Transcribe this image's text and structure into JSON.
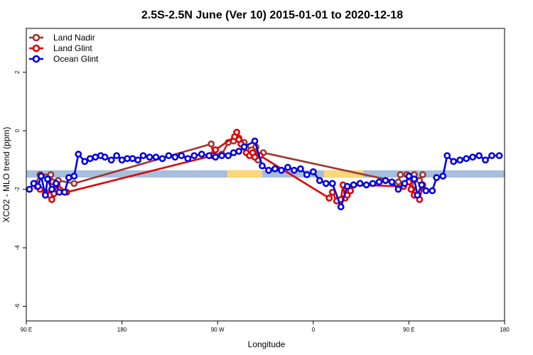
{
  "chart_data": {
    "type": "line",
    "title": "2.5S-2.5N June (Ver 10)   2015-01-01 to 2020-12-18",
    "xlabel": "Longitude",
    "ylabel": "XCO2 - MLO trend (ppm)",
    "xlim": [
      90,
      540
    ],
    "ylim": [
      -6.5,
      3.5
    ],
    "x_ticks": [
      {
        "value": 90,
        "label": "90 E"
      },
      {
        "value": 180,
        "label": "180"
      },
      {
        "value": 270,
        "label": "90 W"
      },
      {
        "value": 360,
        "label": "0"
      },
      {
        "value": 450,
        "label": "90 E"
      },
      {
        "value": 540,
        "label": "180"
      }
    ],
    "y_ticks": [
      {
        "value": 2,
        "label": "2"
      },
      {
        "value": 0,
        "label": "0"
      },
      {
        "value": -2,
        "label": "-2"
      },
      {
        "value": -4,
        "label": "-4"
      },
      {
        "value": -6,
        "label": "-6"
      }
    ],
    "grid": false,
    "legend_position": "top-left",
    "bands": [
      {
        "x": [
          90,
          540
        ],
        "y": [
          -1.6,
          -1.35
        ],
        "color": "#a7bedc"
      },
      {
        "x": [
          279,
          312
        ],
        "y": [
          -1.6,
          -1.35
        ],
        "color": "#fcd67a"
      },
      {
        "x": [
          370,
          407
        ],
        "y": [
          -1.6,
          -1.35
        ],
        "color": "#fcd67a"
      }
    ],
    "series": [
      {
        "name": "Land Nadir",
        "color": "#a0352f",
        "points": [
          [
            99,
            -1.8
          ],
          [
            103,
            -1.5
          ],
          [
            113,
            -1.5
          ],
          [
            115,
            -1.75
          ],
          [
            120,
            -1.7
          ],
          [
            135,
            -1.8
          ],
          [
            264,
            -0.45
          ],
          [
            266,
            -0.8
          ],
          [
            274,
            -0.8
          ],
          [
            280,
            -0.4
          ],
          [
            285,
            -0.35
          ],
          [
            290,
            -0.25
          ],
          [
            295,
            -0.4
          ],
          [
            297,
            -0.6
          ],
          [
            306,
            -0.55
          ],
          [
            308,
            -1.0
          ],
          [
            313,
            -0.75
          ],
          [
            440,
            -1.75
          ],
          [
            442,
            -1.5
          ],
          [
            448,
            -1.5
          ],
          [
            453,
            -2.0
          ],
          [
            455,
            -1.5
          ],
          [
            460,
            -1.7
          ],
          [
            463,
            -1.5
          ]
        ]
      },
      {
        "name": "Land Glint",
        "color": "#e00000",
        "points": [
          [
            100,
            -1.9
          ],
          [
            103,
            -2.0
          ],
          [
            108,
            -2.1
          ],
          [
            112,
            -2.2
          ],
          [
            114,
            -2.35
          ],
          [
            116,
            -2.15
          ],
          [
            119,
            -1.85
          ],
          [
            128,
            -2.1
          ],
          [
            265,
            -0.85
          ],
          [
            268,
            -0.65
          ],
          [
            286,
            -0.2
          ],
          [
            288,
            -0.05
          ],
          [
            290,
            -0.3
          ],
          [
            292,
            -0.45
          ],
          [
            297,
            -0.75
          ],
          [
            300,
            -0.85
          ],
          [
            303,
            -0.75
          ],
          [
            305,
            -0.9
          ],
          [
            310,
            -0.85
          ],
          [
            375,
            -2.3
          ],
          [
            378,
            -2.1
          ],
          [
            382,
            -2.4
          ],
          [
            386,
            -2.35
          ],
          [
            388,
            -1.85
          ],
          [
            390,
            -2.3
          ],
          [
            392,
            -2.2
          ],
          [
            395,
            -2.05
          ],
          [
            398,
            -1.85
          ],
          [
            445,
            -1.9
          ],
          [
            450,
            -1.75
          ],
          [
            452,
            -2.0
          ],
          [
            455,
            -2.2
          ],
          [
            460,
            -2.35
          ],
          [
            463,
            -1.85
          ]
        ]
      },
      {
        "name": "Ocean Glint",
        "color": "#0000e0",
        "points": [
          [
            93,
            -2.0
          ],
          [
            97,
            -1.8
          ],
          [
            101,
            -1.9
          ],
          [
            104,
            -1.55
          ],
          [
            108,
            -2.2
          ],
          [
            110,
            -1.65
          ],
          [
            114,
            -2.0
          ],
          [
            118,
            -1.8
          ],
          [
            121,
            -2.1
          ],
          [
            126,
            -2.1
          ],
          [
            130,
            -1.6
          ],
          [
            135,
            -1.55
          ],
          [
            139,
            -0.8
          ],
          [
            145,
            -1.05
          ],
          [
            150,
            -0.95
          ],
          [
            155,
            -0.9
          ],
          [
            160,
            -0.85
          ],
          [
            164,
            -0.9
          ],
          [
            170,
            -1.0
          ],
          [
            175,
            -0.85
          ],
          [
            180,
            -1.0
          ],
          [
            185,
            -0.95
          ],
          [
            190,
            -0.95
          ],
          [
            195,
            -1.0
          ],
          [
            200,
            -0.85
          ],
          [
            206,
            -0.9
          ],
          [
            212,
            -0.9
          ],
          [
            218,
            -0.95
          ],
          [
            224,
            -0.85
          ],
          [
            230,
            -0.9
          ],
          [
            236,
            -0.85
          ],
          [
            242,
            -0.95
          ],
          [
            248,
            -0.85
          ],
          [
            255,
            -0.8
          ],
          [
            262,
            -0.85
          ],
          [
            268,
            -0.9
          ],
          [
            274,
            -0.85
          ],
          [
            280,
            -0.85
          ],
          [
            285,
            -0.75
          ],
          [
            290,
            -0.7
          ],
          [
            295,
            -0.55
          ],
          [
            305,
            -0.35
          ],
          [
            312,
            -1.2
          ],
          [
            318,
            -1.35
          ],
          [
            324,
            -1.3
          ],
          [
            330,
            -1.35
          ],
          [
            336,
            -1.25
          ],
          [
            342,
            -1.35
          ],
          [
            348,
            -1.3
          ],
          [
            354,
            -1.5
          ],
          [
            360,
            -1.4
          ],
          [
            366,
            -1.7
          ],
          [
            372,
            -1.8
          ],
          [
            378,
            -1.8
          ],
          [
            386,
            -2.6
          ],
          [
            392,
            -1.9
          ],
          [
            398,
            -1.85
          ],
          [
            404,
            -1.8
          ],
          [
            410,
            -1.85
          ],
          [
            416,
            -1.8
          ],
          [
            422,
            -1.75
          ],
          [
            428,
            -1.7
          ],
          [
            434,
            -1.75
          ],
          [
            440,
            -2.0
          ],
          [
            446,
            -1.8
          ],
          [
            450,
            -1.55
          ],
          [
            455,
            -1.65
          ],
          [
            458,
            -2.2
          ],
          [
            462,
            -1.85
          ],
          [
            466,
            -2.05
          ],
          [
            472,
            -2.05
          ],
          [
            476,
            -1.6
          ],
          [
            482,
            -1.55
          ],
          [
            486,
            -0.85
          ],
          [
            492,
            -1.05
          ],
          [
            498,
            -1.0
          ],
          [
            504,
            -0.95
          ],
          [
            510,
            -0.9
          ],
          [
            516,
            -0.85
          ],
          [
            522,
            -1.0
          ],
          [
            528,
            -0.85
          ],
          [
            535,
            -0.85
          ]
        ]
      }
    ]
  }
}
